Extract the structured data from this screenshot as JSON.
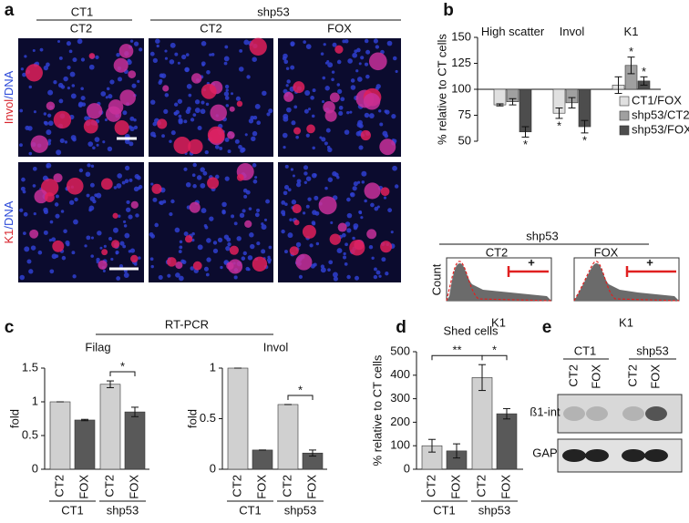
{
  "panel_labels": [
    "a",
    "b",
    "c",
    "d",
    "e"
  ],
  "panel_a": {
    "col_groups": [
      "CT1",
      "shp53"
    ],
    "columns": [
      "CT2",
      "CT2",
      "FOX"
    ],
    "rows": [
      [
        "Invol",
        "/DNA"
      ],
      [
        "K1",
        "/DNA"
      ]
    ]
  },
  "facs": {
    "group": "shp53",
    "columns": [
      "CT2",
      "FOX"
    ],
    "ylabel": "Count",
    "xlabel": "K1",
    "gate": "+"
  },
  "rt_pcr": "RT-PCR",
  "blot": {
    "groups": [
      "CT1",
      "shp53"
    ],
    "lanes": [
      "CT2",
      "FOX",
      "CT2",
      "FOX"
    ],
    "bands": [
      "ß1-int",
      "GAP"
    ]
  },
  "chart_data": [
    {
      "type": "bar",
      "ylabel": "% relative to CT cells",
      "categories": [
        "High scatter",
        "Invol",
        "K1"
      ],
      "series": [
        {
          "name": "CT1/FOX",
          "color": "#e0e0e0",
          "values": [
            85,
            77,
            104
          ],
          "errors": [
            1,
            5,
            8
          ],
          "significance": [
            null,
            "*",
            null
          ]
        },
        {
          "name": "shp53/CT2",
          "color": "#a0a0a0",
          "values": [
            88,
            87,
            123
          ],
          "errors": [
            3,
            5,
            8
          ],
          "significance": [
            null,
            null,
            "*"
          ]
        },
        {
          "name": "shp53/FOX",
          "color": "#4d4d4d",
          "values": [
            59,
            64,
            108
          ],
          "errors": [
            5,
            6,
            4
          ],
          "significance": [
            "*",
            "*",
            "*"
          ]
        }
      ],
      "ylim": [
        50,
        150
      ],
      "yticks": [
        50,
        75,
        100,
        125,
        150
      ],
      "baseline": 100,
      "legend": "lower right"
    },
    {
      "type": "bar",
      "title": "Filag",
      "ylabel": "fold",
      "categories": [
        "CT2",
        "FOX",
        "CT2",
        "FOX"
      ],
      "groups": [
        "CT1",
        "shp53"
      ],
      "values": [
        1,
        0.73,
        1.26,
        0.85
      ],
      "errors": [
        0,
        0.01,
        0.05,
        0.07
      ],
      "colors": [
        "#d0d0d0",
        "#595959",
        "#d0d0d0",
        "#595959"
      ],
      "ylim": [
        0,
        1.5
      ],
      "yticks": [
        0,
        0.5,
        1,
        1.5
      ],
      "brackets": [
        {
          "from": 2,
          "to": 3,
          "label": "*"
        }
      ]
    },
    {
      "type": "bar",
      "title": "Invol",
      "ylabel": "fold",
      "categories": [
        "CT2",
        "FOX",
        "CT2",
        "FOX"
      ],
      "groups": [
        "CT1",
        "shp53"
      ],
      "values": [
        1,
        0.19,
        0.64,
        0.16
      ],
      "errors": [
        0,
        0,
        0,
        0.03
      ],
      "colors": [
        "#d0d0d0",
        "#595959",
        "#d0d0d0",
        "#595959"
      ],
      "ylim": [
        0,
        1
      ],
      "yticks": [
        0,
        0.5,
        1
      ],
      "brackets": [
        {
          "from": 2,
          "to": 3,
          "label": "*"
        }
      ]
    },
    {
      "type": "bar",
      "title": "Shed cells",
      "ylabel": "% relative to CT cells",
      "categories": [
        "CT2",
        "FOX",
        "CT2",
        "FOX"
      ],
      "groups": [
        "CT1",
        "shp53"
      ],
      "values": [
        100,
        78,
        390,
        236
      ],
      "errors": [
        27,
        30,
        55,
        22
      ],
      "colors": [
        "#d0d0d0",
        "#595959",
        "#d0d0d0",
        "#595959"
      ],
      "ylim": [
        0,
        500
      ],
      "yticks": [
        0,
        100,
        200,
        300,
        400,
        500
      ],
      "brackets": [
        {
          "from": 0,
          "to": 2,
          "label": "**"
        },
        {
          "from": 2,
          "to": 3,
          "label": "*"
        }
      ]
    }
  ]
}
